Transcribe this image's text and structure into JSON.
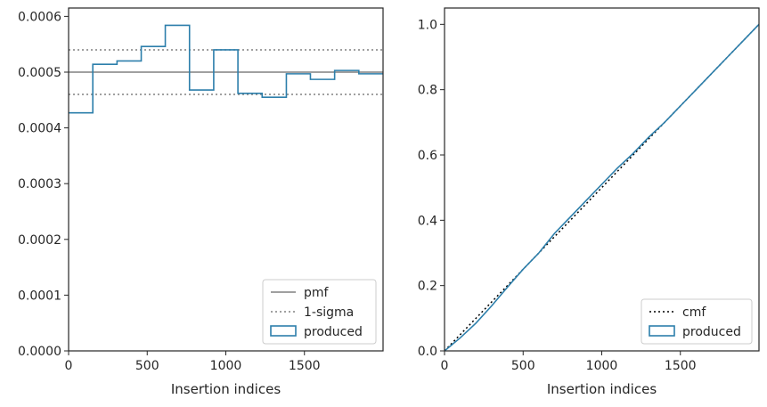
{
  "chart_data": [
    {
      "type": "line",
      "subtype": "histogram-step",
      "title": "",
      "xlabel": "Insertion indices",
      "ylabel": "",
      "xlim": [
        0,
        2000
      ],
      "ylim": [
        0,
        0.000615
      ],
      "xticks": [
        0,
        500,
        1000,
        1500
      ],
      "xtick_labels": [
        "0",
        "500",
        "1000",
        "1500"
      ],
      "yticks": [
        0,
        0.0001,
        0.0002,
        0.0003,
        0.0004,
        0.0005,
        0.0006
      ],
      "ytick_labels": [
        "0.0000",
        "0.0001",
        "0.0002",
        "0.0003",
        "0.0004",
        "0.0005",
        "0.0006"
      ],
      "grid": false,
      "legend_position": "lower-right",
      "hlines": [
        {
          "name": "pmf",
          "y": 0.0005,
          "style": "solid",
          "color": "#808080"
        },
        {
          "name": "1-sigma",
          "y": 0.00054,
          "style": "dotted",
          "color": "#808080"
        },
        {
          "name": "1-sigma",
          "y": 0.00046,
          "style": "dotted",
          "color": "#808080",
          "legend": false
        }
      ],
      "series": [
        {
          "name": "produced",
          "color": "#2d7fab",
          "bin_edges": [
            0,
            154,
            308,
            462,
            615,
            769,
            923,
            1077,
            1231,
            1385,
            1538,
            1692,
            1846,
            2000
          ],
          "values": [
            0.000427,
            0.000514,
            0.00052,
            0.000546,
            0.000584,
            0.000468,
            0.00054,
            0.000462,
            0.000455,
            0.000497,
            0.000487,
            0.000503,
            0.000497
          ]
        }
      ],
      "legend": [
        "pmf",
        "1-sigma",
        "produced"
      ]
    },
    {
      "type": "line",
      "title": "",
      "xlabel": "Insertion indices",
      "ylabel": "",
      "xlim": [
        0,
        2000
      ],
      "ylim": [
        0,
        1.05
      ],
      "xticks": [
        0,
        500,
        1000,
        1500
      ],
      "xtick_labels": [
        "0",
        "500",
        "1000",
        "1500"
      ],
      "yticks": [
        0,
        0.2,
        0.4,
        0.6,
        0.8,
        1.0
      ],
      "ytick_labels": [
        "0.0",
        "0.2",
        "0.4",
        "0.6",
        "0.8",
        "1.0"
      ],
      "grid": false,
      "legend_position": "lower-right",
      "series": [
        {
          "name": "cmf",
          "style": "dotted",
          "color": "#000000",
          "x": [
            0,
            2000
          ],
          "y": [
            0,
            1.0
          ]
        },
        {
          "name": "produced",
          "style": "solid",
          "color": "#2d7fab",
          "x": [
            0,
            100,
            200,
            300,
            400,
            500,
            600,
            700,
            800,
            900,
            1000,
            1100,
            1200,
            1300,
            1400,
            1500,
            1600,
            1700,
            1800,
            1900,
            2000
          ],
          "y": [
            0,
            0.04,
            0.085,
            0.138,
            0.195,
            0.25,
            0.3,
            0.36,
            0.41,
            0.46,
            0.51,
            0.56,
            0.605,
            0.655,
            0.7,
            0.75,
            0.8,
            0.85,
            0.9,
            0.95,
            1.0
          ]
        }
      ],
      "legend": [
        "cmf",
        "produced"
      ]
    }
  ]
}
